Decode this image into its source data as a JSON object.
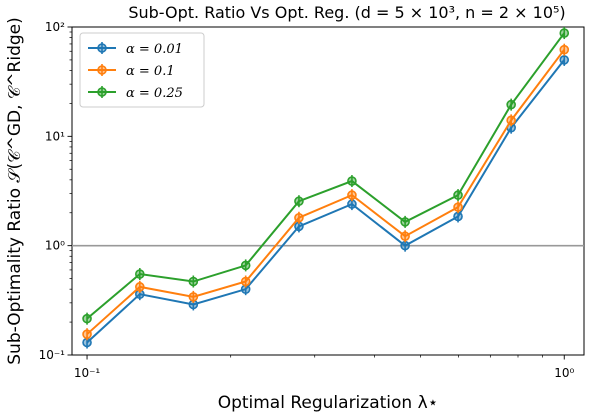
{
  "chart_data": {
    "type": "line",
    "title": "Sub-Opt. Ratio Vs Opt. Reg. (d = 5 × 10³, n = 2 × 10⁵)",
    "xlabel": "Optimal Regularization λ⋆",
    "ylabel": "Sub-Optimality Ratio 𝒮(𝒞^GD, 𝒞^Ridge)",
    "x_scale": "log",
    "y_scale": "log",
    "xlim": [
      0.093,
      1.1
    ],
    "ylim": [
      0.1,
      100
    ],
    "x_ticks": [
      {
        "value": 0.1,
        "label": "10⁻¹"
      },
      {
        "value": 1,
        "label": "10⁰"
      }
    ],
    "y_ticks": [
      {
        "value": 0.1,
        "label": "10⁻¹"
      },
      {
        "value": 1,
        "label": "10⁰"
      },
      {
        "value": 10,
        "label": "10¹"
      },
      {
        "value": 100,
        "label": "10²"
      }
    ],
    "reference_line": {
      "y": 1,
      "color": "#999999"
    },
    "grid": false,
    "legend_position": "top-left",
    "x": [
      0.1,
      0.129,
      0.167,
      0.215,
      0.278,
      0.359,
      0.464,
      0.599,
      0.774,
      1.0
    ],
    "series": [
      {
        "name": "α = 0.01",
        "color": "#1f77b4",
        "values": [
          0.13,
          0.36,
          0.29,
          0.4,
          1.5,
          2.4,
          1.0,
          1.85,
          12.0,
          50.0
        ]
      },
      {
        "name": "α = 0.1",
        "color": "#ff7f0e",
        "values": [
          0.155,
          0.42,
          0.34,
          0.47,
          1.8,
          2.9,
          1.22,
          2.25,
          14.0,
          62.0
        ]
      },
      {
        "name": "α = 0.25",
        "color": "#2ca02c",
        "values": [
          0.215,
          0.55,
          0.47,
          0.66,
          2.55,
          3.9,
          1.65,
          2.9,
          19.5,
          88.0
        ]
      }
    ]
  }
}
